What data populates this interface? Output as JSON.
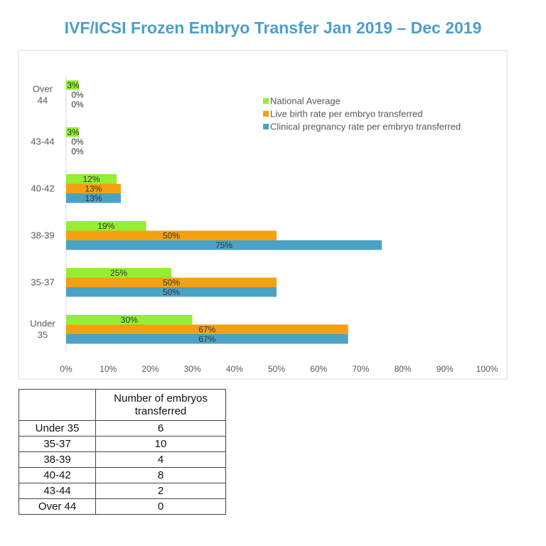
{
  "title": "IVF/ICSI Frozen Embryo Transfer Jan 2019 – Dec 2019",
  "colors": {
    "title": "#4a9fca",
    "national": "#92ef34",
    "live": "#f5a011",
    "clinical": "#4aa3c4",
    "axis_text": "#595959",
    "frame": "#d9d9d9",
    "grid": "#d9d9d9"
  },
  "chart_data": {
    "type": "bar",
    "orientation": "horizontal",
    "title": "IVF/ICSI Frozen Embryo Transfer Jan 2019 – Dec 2019",
    "categories": [
      "Over 44",
      "43-44",
      "40-42",
      "38-39",
      "35-37",
      "Under 35"
    ],
    "category_label_lines": [
      [
        "Over",
        "44"
      ],
      [
        "43-44"
      ],
      [
        "40-42"
      ],
      [
        "38-39"
      ],
      [
        "35-37"
      ],
      [
        "Under",
        "35"
      ]
    ],
    "series": [
      {
        "name": "National Average",
        "values": [
          3,
          3,
          12,
          19,
          25,
          30
        ],
        "labels": [
          "3%",
          "3%",
          "12%",
          "19%",
          "25%",
          "30%"
        ],
        "color_key": "national"
      },
      {
        "name": "Live birth rate per embryo transferred",
        "values": [
          0,
          0,
          13,
          50,
          50,
          67
        ],
        "labels": [
          "0%",
          "0%",
          "13%",
          "50%",
          "50%",
          "67%"
        ],
        "color_key": "live"
      },
      {
        "name": "Clinical pregnancy rate per embryo transferred",
        "values": [
          0,
          0,
          13,
          75,
          50,
          67
        ],
        "labels": [
          "0%",
          "0%",
          "13%",
          "75%",
          "50%",
          "67%"
        ],
        "color_key": "clinical"
      }
    ],
    "legend_order": [
      0,
      1,
      2
    ],
    "legend_position": "top-right",
    "xlim": [
      0,
      100
    ],
    "xticks": [
      0,
      10,
      20,
      30,
      40,
      50,
      60,
      70,
      80,
      90,
      100
    ],
    "xtick_labels": [
      "0%",
      "10%",
      "20%",
      "30%",
      "40%",
      "50%",
      "60%",
      "70%",
      "80%",
      "90%",
      "100%"
    ],
    "xlabel": "",
    "ylabel": "",
    "grid": false
  },
  "table": {
    "header": [
      "",
      "Number of embryos transferred"
    ],
    "rows": [
      {
        "age": "Under 35",
        "count": "6"
      },
      {
        "age": "35-37",
        "count": "10"
      },
      {
        "age": "38-39",
        "count": "4"
      },
      {
        "age": "40-42",
        "count": "8"
      },
      {
        "age": "43-44",
        "count": "2"
      },
      {
        "age": "Over 44",
        "count": "0"
      }
    ]
  }
}
